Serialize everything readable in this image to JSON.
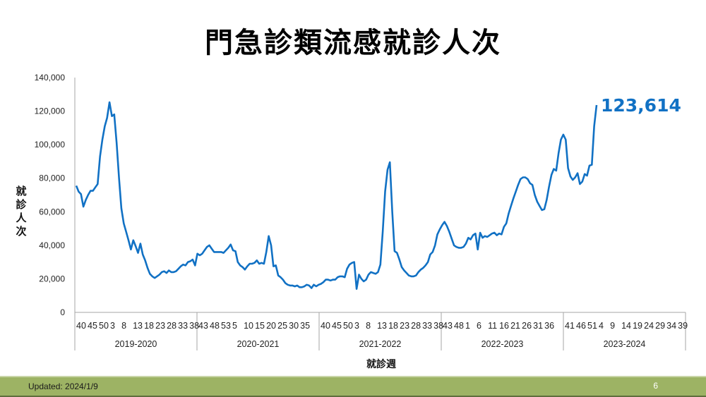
{
  "slide": {
    "title": "門急診類流感就診人次",
    "ylabel": "就診人次",
    "xlabel": "就診週",
    "latest_value_label": "123,614",
    "footer_updated": "Updated: 2024/1/9",
    "page_number": "6",
    "colors": {
      "line": "#1171c4",
      "footer": "#9db364",
      "axis": "#a6a6a6",
      "latest_label": "#1171c4"
    }
  },
  "chart_data": {
    "type": "line",
    "title": "門急診類流感就診人次",
    "xlabel": "就診週",
    "ylabel": "就診人次",
    "ylim": [
      0,
      140000
    ],
    "yticks": [
      0,
      20000,
      40000,
      60000,
      80000,
      100000,
      120000,
      140000
    ],
    "ytick_labels": [
      "0",
      "20,000",
      "40,000",
      "60,000",
      "80,000",
      "100,000",
      "120,000",
      "140,000"
    ],
    "grid": false,
    "legend": null,
    "annotation": {
      "text": "123,614",
      "at": "last point"
    },
    "groups": [
      {
        "label": "2019-2020",
        "tick_labels": [
          "40",
          "45",
          "50",
          "3",
          "8",
          "13",
          "18",
          "23",
          "28",
          "33",
          "38"
        ]
      },
      {
        "label": "2020-2021",
        "tick_labels": [
          "43",
          "48",
          "53",
          "5",
          "10",
          "15",
          "20",
          "25",
          "30",
          "35"
        ]
      },
      {
        "label": "2021-2022",
        "tick_labels": [
          "40",
          "45",
          "50",
          "3",
          "8",
          "13",
          "18",
          "23",
          "28",
          "33",
          "38"
        ]
      },
      {
        "label": "2022-2023",
        "tick_labels": [
          "43",
          "48",
          "1",
          "6",
          "11",
          "16",
          "21",
          "26",
          "31",
          "36"
        ]
      },
      {
        "label": "2023-2024",
        "tick_labels": [
          "41",
          "46",
          "51",
          "4",
          "9",
          "14",
          "19",
          "24",
          "29",
          "34",
          "39"
        ]
      }
    ],
    "series": [
      {
        "name": "門急診類流感就診人次",
        "color": "#1171c4",
        "segments": [
          {
            "season": "2019-2020",
            "start_week": 40,
            "values": [
              75500,
              72000,
              70500,
              63000,
              67000,
              70000,
              72500,
              72500,
              74500,
              76500,
              93000,
              103000,
              111000,
              116000,
              125300,
              117000,
              118000,
              101000,
              80000,
              62000,
              53000,
              48000,
              43000,
              37500,
              43000,
              39500,
              35500,
              41000,
              34500,
              31000,
              26500,
              23000,
              21500,
              20500,
              21500,
              22500,
              24000,
              24500,
              23500,
              25000,
              24000,
              24000,
              24500,
              26000,
              27500,
              28500,
              28000,
              30000,
              30500,
              31500,
              28000,
              35000
            ]
          },
          {
            "season": "2020-2021",
            "start_week": 43,
            "values": [
              34000,
              35000,
              37000,
              39000,
              40000,
              38000,
              36000,
              36000,
              36000,
              36000,
              35500,
              37000,
              38500,
              40500,
              37000,
              36500,
              30000,
              28000,
              27000,
              25500,
              27500,
              29000,
              29000,
              29500,
              31000,
              29000,
              29500,
              29000,
              36000,
              45500,
              40000,
              27500,
              28000,
              22000,
              21000,
              19500,
              17500,
              16500,
              16000,
              16000,
              15500,
              16000,
              15000,
              15000,
              15500,
              16500,
              16000,
              14500,
              16500
            ]
          },
          {
            "season": "2021-2022",
            "start_week": 40,
            "values": [
              15500,
              16500,
              17000,
              18000,
              19500,
              19500,
              19000,
              19500,
              19500,
              21000,
              21500,
              21500,
              21000,
              26000,
              28500,
              29500,
              30000,
              14000,
              22500,
              20000,
              18500,
              19500,
              22500,
              24000,
              23500,
              23000,
              24000,
              28500,
              48000,
              72000,
              85000,
              89500,
              60000,
              36500,
              35500,
              31500,
              27000,
              25000,
              23500,
              22000,
              21500,
              21500,
              22000,
              24000,
              25500,
              26500,
              28000,
              30000,
              34500,
              36000,
              40000,
              46500,
              49500,
              52000,
              54000
            ]
          },
          {
            "season": "2022-2023",
            "start_week": 43,
            "values": [
              51500,
              48000,
              44000,
              40000,
              39000,
              38500,
              38500,
              39000,
              41000,
              44500,
              43500,
              46000,
              47000,
              37500,
              47500,
              44500,
              45500,
              45000,
              46000,
              47000,
              47500,
              46000,
              47000,
              46500,
              51000,
              53000,
              59000,
              63500,
              68000,
              72000,
              76000,
              79500,
              80500,
              80500,
              79500,
              77000,
              76000,
              70000,
              66000,
              63500,
              61000,
              61500,
              67000,
              75000,
              82000,
              85500,
              84500
            ]
          },
          {
            "season": "2023-2024",
            "start_week": 41,
            "values": [
              95000,
              103000,
              106000,
              103000,
              86000,
              81000,
              79000,
              80500,
              83000,
              76500,
              78000,
              82500,
              81500,
              87500,
              88000,
              111000,
              123614
            ]
          }
        ]
      }
    ]
  }
}
